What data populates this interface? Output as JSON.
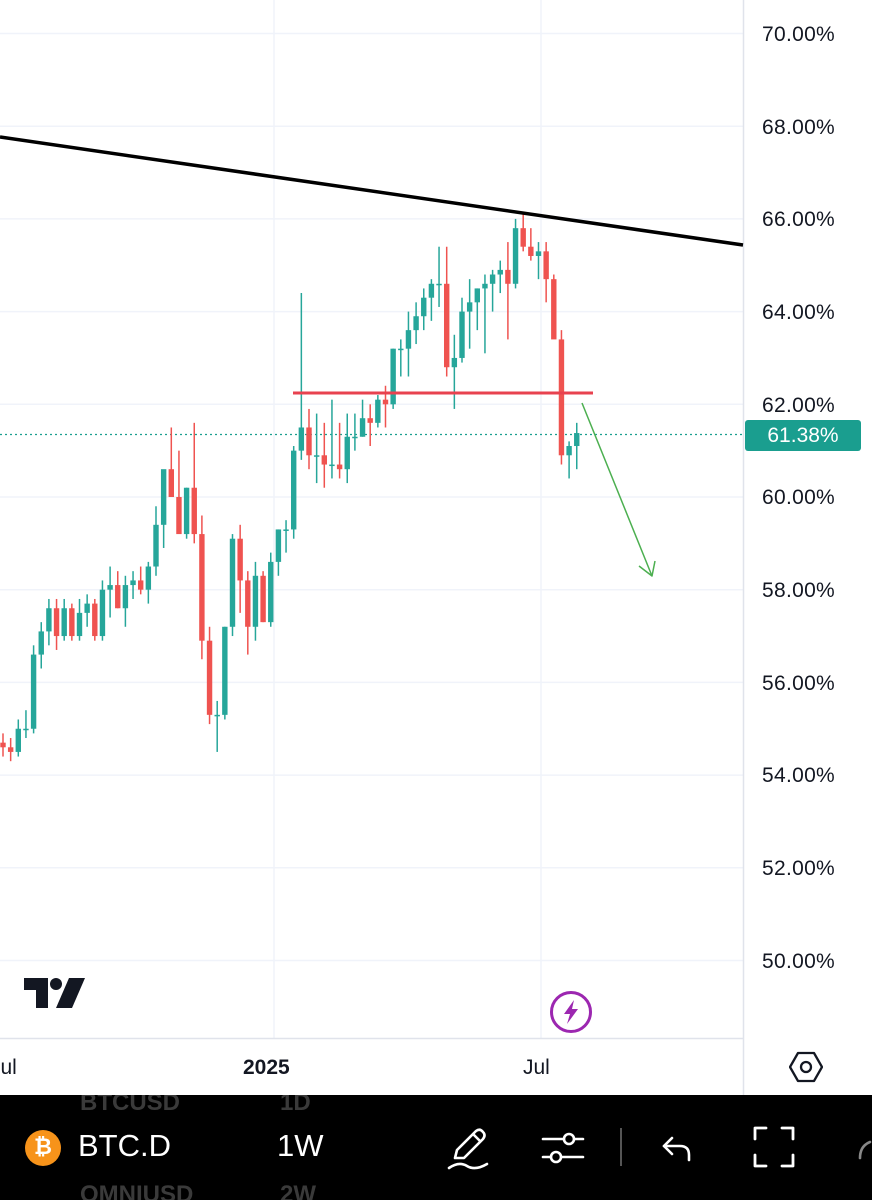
{
  "chart_data": {
    "type": "candlestick",
    "symbol": "BTC.D",
    "interval": "1W",
    "y_axis": {
      "unit": "%",
      "range": [
        48.9,
        70.7
      ],
      "tick_labels": [
        "70.00%",
        "68.00%",
        "66.00%",
        "64.00%",
        "62.00%",
        "60.00%",
        "58.00%",
        "56.00%",
        "54.00%",
        "52.00%",
        "50.00%"
      ],
      "tick_values": [
        70,
        68,
        66,
        64,
        62,
        60,
        58,
        56,
        54,
        52,
        50
      ]
    },
    "x_axis": {
      "tick_labels": [
        "Jul",
        "2025",
        "Jul"
      ]
    },
    "current_price": 61.38,
    "current_price_label": "61.38%",
    "candles": [
      [
        54.7,
        54.9,
        54.4,
        54.6
      ],
      [
        54.6,
        54.8,
        54.3,
        54.5
      ],
      [
        54.5,
        55.2,
        54.4,
        55.0
      ],
      [
        55.0,
        55.4,
        54.8,
        55.0
      ],
      [
        55.0,
        56.8,
        54.9,
        56.6
      ],
      [
        56.6,
        57.3,
        56.3,
        57.1
      ],
      [
        57.1,
        57.8,
        56.8,
        57.6
      ],
      [
        57.6,
        57.8,
        56.7,
        57.0
      ],
      [
        57.0,
        57.8,
        56.9,
        57.6
      ],
      [
        57.6,
        57.7,
        56.9,
        57.0
      ],
      [
        57.0,
        57.8,
        56.9,
        57.5
      ],
      [
        57.5,
        57.9,
        57.2,
        57.7
      ],
      [
        57.7,
        57.8,
        56.9,
        57.0
      ],
      [
        57.0,
        58.2,
        56.9,
        58.0
      ],
      [
        58.0,
        58.5,
        57.4,
        58.1
      ],
      [
        58.1,
        58.4,
        57.6,
        57.6
      ],
      [
        57.6,
        58.3,
        57.2,
        58.1
      ],
      [
        58.1,
        58.4,
        57.8,
        58.2
      ],
      [
        58.2,
        58.5,
        57.9,
        58.0
      ],
      [
        58.0,
        58.6,
        57.7,
        58.5
      ],
      [
        58.5,
        59.8,
        58.3,
        59.4
      ],
      [
        59.4,
        60.4,
        58.9,
        60.6
      ],
      [
        60.6,
        61.5,
        60.0,
        60.0
      ],
      [
        60.0,
        61.0,
        59.3,
        59.2
      ],
      [
        59.2,
        60.2,
        59.1,
        60.2
      ],
      [
        60.2,
        61.6,
        59.0,
        59.2
      ],
      [
        59.2,
        59.6,
        56.5,
        56.9
      ],
      [
        56.9,
        57.2,
        55.1,
        55.3
      ],
      [
        55.3,
        55.6,
        54.5,
        55.3
      ],
      [
        55.3,
        57.2,
        55.2,
        57.2
      ],
      [
        57.2,
        59.2,
        57.0,
        59.1
      ],
      [
        59.1,
        59.4,
        57.5,
        58.2
      ],
      [
        58.2,
        58.4,
        56.6,
        57.2
      ],
      [
        57.2,
        58.6,
        56.9,
        58.3
      ],
      [
        58.3,
        58.4,
        57.3,
        57.3
      ],
      [
        57.3,
        58.8,
        57.2,
        58.6
      ],
      [
        58.6,
        59.3,
        58.3,
        59.3
      ],
      [
        59.3,
        59.5,
        58.8,
        59.3
      ],
      [
        59.3,
        61.1,
        59.1,
        61.0
      ],
      [
        61.0,
        64.4,
        60.8,
        61.5
      ],
      [
        61.5,
        61.9,
        60.6,
        60.9
      ],
      [
        60.9,
        61.8,
        60.3,
        60.9
      ],
      [
        60.9,
        61.6,
        60.2,
        60.7
      ],
      [
        60.7,
        62.1,
        60.4,
        60.7
      ],
      [
        60.7,
        61.6,
        60.4,
        60.6
      ],
      [
        60.6,
        61.8,
        60.3,
        61.3
      ],
      [
        61.3,
        61.8,
        61.0,
        61.3
      ],
      [
        61.3,
        62.1,
        61.3,
        61.7
      ],
      [
        61.7,
        62.0,
        61.1,
        61.6
      ],
      [
        61.6,
        62.2,
        61.5,
        62.1
      ],
      [
        62.1,
        62.4,
        61.5,
        62.0
      ],
      [
        62.0,
        63.2,
        61.9,
        63.2
      ],
      [
        63.2,
        63.4,
        62.6,
        63.2
      ],
      [
        63.2,
        64.0,
        62.6,
        63.6
      ],
      [
        63.6,
        64.2,
        63.3,
        63.9
      ],
      [
        63.9,
        64.5,
        63.6,
        64.3
      ],
      [
        64.3,
        64.7,
        63.8,
        64.6
      ],
      [
        64.6,
        65.4,
        64.1,
        64.6
      ],
      [
        64.6,
        65.4,
        62.6,
        62.8
      ],
      [
        62.8,
        63.5,
        61.9,
        63.0
      ],
      [
        63.0,
        64.3,
        62.9,
        64.0
      ],
      [
        64.0,
        64.7,
        63.2,
        64.2
      ],
      [
        64.2,
        64.5,
        63.6,
        64.5
      ],
      [
        64.5,
        64.8,
        63.1,
        64.6
      ],
      [
        64.6,
        64.9,
        64.0,
        64.8
      ],
      [
        64.8,
        65.1,
        64.4,
        64.9
      ],
      [
        64.9,
        65.5,
        63.4,
        64.6
      ],
      [
        64.6,
        66.0,
        64.5,
        65.8
      ],
      [
        65.8,
        66.1,
        65.3,
        65.4
      ],
      [
        65.4,
        65.8,
        65.1,
        65.2
      ],
      [
        65.2,
        65.5,
        64.7,
        65.3
      ],
      [
        65.3,
        65.5,
        64.2,
        64.7
      ],
      [
        64.7,
        64.8,
        63.6,
        63.4
      ],
      [
        63.4,
        63.6,
        60.7,
        60.9
      ],
      [
        60.9,
        61.2,
        60.4,
        61.1
      ],
      [
        61.1,
        61.6,
        60.6,
        61.38
      ]
    ]
  },
  "toolbar": {
    "coin_glyph": "₿",
    "symbol": "BTC.D",
    "timeframe": "1W",
    "ghost_top_left": "BTCUSD",
    "ghost_top_right": "1D",
    "ghost_bottom_left": "OMNIUSD",
    "ghost_bottom_right": "2W"
  },
  "colors": {
    "up": "#26a69a",
    "down": "#ef5350",
    "trendline": "#000000",
    "support": "#e8424f",
    "arrow": "#4caf50",
    "price_line": "#1a9e8f",
    "bolt": "#9c27b0"
  },
  "icons": {
    "logo": "tradingview-logo-icon",
    "bolt": "lightning-bolt-icon",
    "settings": "settings-gear-icon",
    "draw": "pen-draw-icon",
    "indicators": "sliders-icon",
    "undo": "undo-arrow-icon",
    "fullscreen": "fullscreen-icon"
  }
}
